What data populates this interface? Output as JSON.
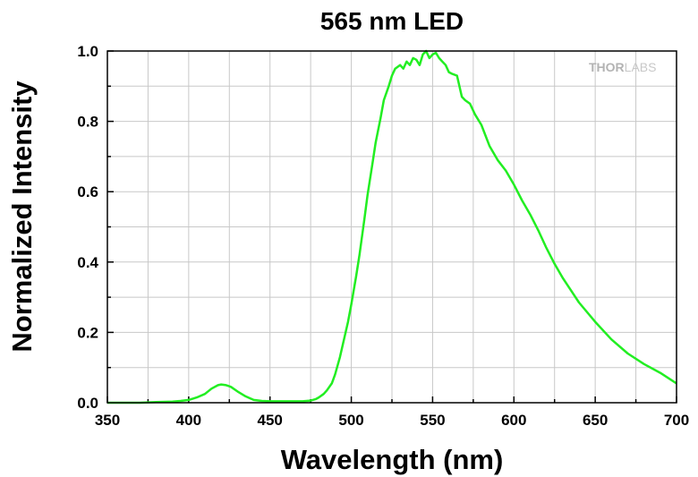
{
  "chart_data": {
    "type": "line",
    "title": "565 nm LED",
    "xlabel": "Wavelength (nm)",
    "ylabel": "Normalized Intensity",
    "xlim": [
      350,
      700
    ],
    "ylim": [
      0.0,
      1.0
    ],
    "x_ticks": [
      "350",
      "400",
      "450",
      "500",
      "550",
      "600",
      "650",
      "700"
    ],
    "y_ticks": [
      "0.0",
      "0.2",
      "0.4",
      "0.6",
      "0.8",
      "1.0"
    ],
    "grid": true,
    "series": [
      {
        "color": "#22ee22",
        "x": [
          350,
          370,
          380,
          390,
          395,
          400,
          405,
          410,
          414,
          418,
          420,
          423,
          426,
          430,
          435,
          440,
          445,
          450,
          460,
          470,
          475,
          478,
          480,
          483,
          485,
          488,
          490,
          493,
          495,
          498,
          500,
          503,
          505,
          508,
          510,
          513,
          515,
          518,
          520,
          523,
          525,
          527,
          530,
          532,
          534,
          536,
          538,
          540,
          542,
          544,
          546,
          548,
          550,
          552,
          554,
          556,
          558,
          560,
          562,
          565,
          568,
          570,
          573,
          576,
          580,
          585,
          590,
          595,
          600,
          605,
          610,
          615,
          620,
          625,
          630,
          640,
          650,
          660,
          670,
          680,
          690,
          700
        ],
        "y": [
          0.0,
          0.0,
          0.002,
          0.003,
          0.005,
          0.008,
          0.015,
          0.025,
          0.04,
          0.05,
          0.052,
          0.05,
          0.045,
          0.032,
          0.018,
          0.008,
          0.005,
          0.004,
          0.004,
          0.004,
          0.006,
          0.01,
          0.015,
          0.025,
          0.035,
          0.055,
          0.08,
          0.13,
          0.17,
          0.23,
          0.28,
          0.36,
          0.42,
          0.52,
          0.59,
          0.68,
          0.74,
          0.81,
          0.86,
          0.9,
          0.93,
          0.95,
          0.96,
          0.95,
          0.97,
          0.96,
          0.98,
          0.975,
          0.96,
          0.99,
          1.0,
          0.98,
          0.99,
          0.995,
          0.98,
          0.97,
          0.96,
          0.94,
          0.935,
          0.93,
          0.87,
          0.86,
          0.85,
          0.82,
          0.79,
          0.73,
          0.69,
          0.66,
          0.62,
          0.575,
          0.535,
          0.49,
          0.44,
          0.395,
          0.355,
          0.285,
          0.23,
          0.18,
          0.14,
          0.11,
          0.085,
          0.055
        ]
      }
    ]
  },
  "watermark": {
    "part1": "THOR",
    "part2": "LABS"
  }
}
